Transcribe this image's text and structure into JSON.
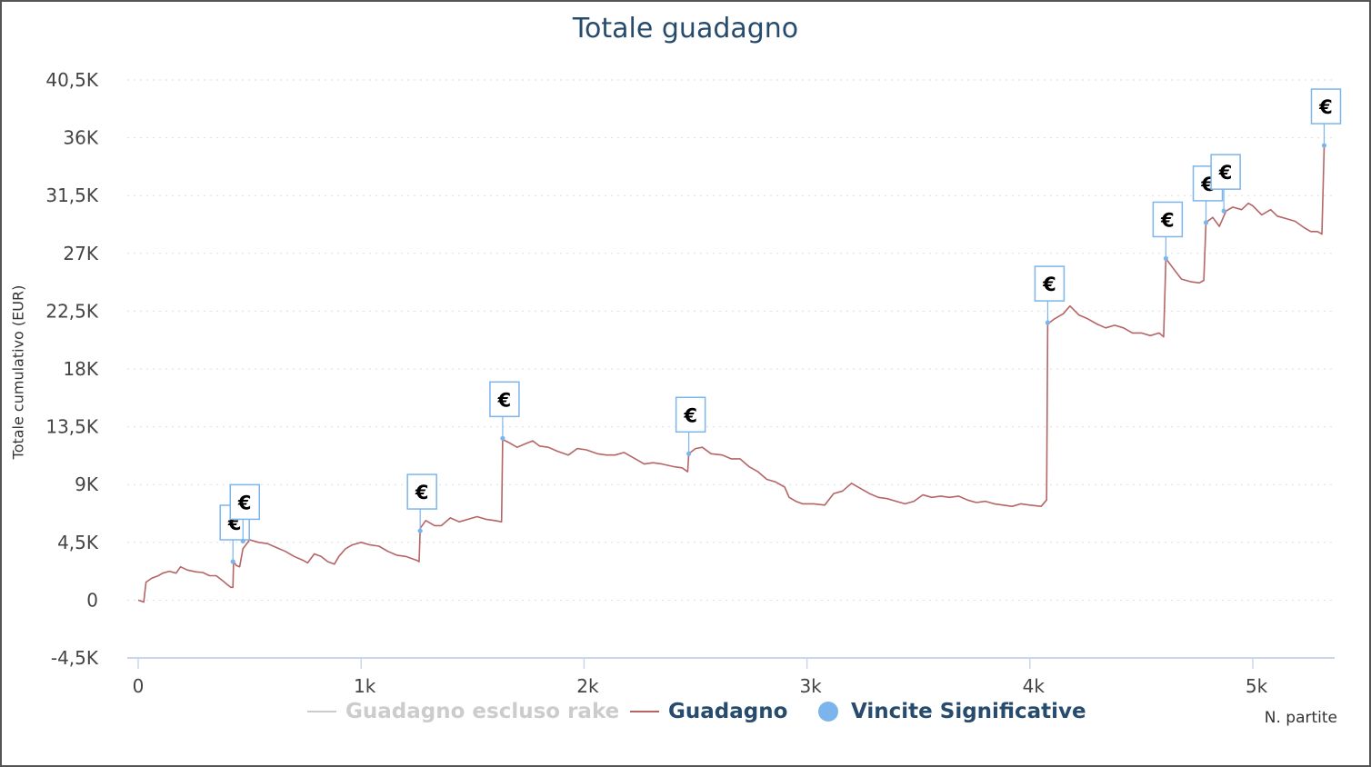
{
  "chart_data": {
    "type": "line",
    "title": "Totale guadagno",
    "xlabel": "N. partite",
    "ylabel": "Totale cumulativo (EUR)",
    "xlim": [
      0,
      5350
    ],
    "ylim": [
      -4500,
      40500
    ],
    "y_ticks": [
      "40,5K",
      "36K",
      "31,5K",
      "27K",
      "22,5K",
      "18K",
      "13,5K",
      "9K",
      "4,5K",
      "0",
      "-4,5K"
    ],
    "y_tick_values": [
      40500,
      36000,
      31500,
      27000,
      22500,
      18000,
      13500,
      9000,
      4500,
      0,
      -4500
    ],
    "x_ticks": [
      "0",
      "1k",
      "2k",
      "3k",
      "4k",
      "5k"
    ],
    "x_tick_values": [
      0,
      1000,
      2000,
      3000,
      4000,
      5000
    ],
    "grid": true,
    "legend_position": "bottom",
    "series": [
      {
        "name": "Guadagno escluso rake",
        "color": "#cccccc",
        "visible": false
      },
      {
        "name": "Guadagno",
        "color": "#b56565",
        "points": [
          [
            0,
            0
          ],
          [
            25,
            -150
          ],
          [
            35,
            1400
          ],
          [
            60,
            1700
          ],
          [
            90,
            1900
          ],
          [
            110,
            2100
          ],
          [
            140,
            2250
          ],
          [
            170,
            2100
          ],
          [
            190,
            2600
          ],
          [
            220,
            2350
          ],
          [
            260,
            2200
          ],
          [
            290,
            2150
          ],
          [
            320,
            1900
          ],
          [
            350,
            1900
          ],
          [
            380,
            1500
          ],
          [
            400,
            1200
          ],
          [
            415,
            1000
          ],
          [
            425,
            1000
          ],
          [
            428,
            3000
          ],
          [
            440,
            2700
          ],
          [
            455,
            2600
          ],
          [
            470,
            4000
          ],
          [
            500,
            4700
          ],
          [
            540,
            4500
          ],
          [
            580,
            4400
          ],
          [
            620,
            4100
          ],
          [
            660,
            3800
          ],
          [
            700,
            3400
          ],
          [
            740,
            3100
          ],
          [
            760,
            2900
          ],
          [
            790,
            3600
          ],
          [
            820,
            3400
          ],
          [
            850,
            3000
          ],
          [
            880,
            2800
          ],
          [
            900,
            3400
          ],
          [
            930,
            4000
          ],
          [
            960,
            4300
          ],
          [
            1000,
            4500
          ],
          [
            1040,
            4300
          ],
          [
            1080,
            4200
          ],
          [
            1120,
            3800
          ],
          [
            1160,
            3500
          ],
          [
            1200,
            3400
          ],
          [
            1250,
            3100
          ],
          [
            1260,
            3000
          ],
          [
            1265,
            5600
          ],
          [
            1290,
            6200
          ],
          [
            1330,
            5800
          ],
          [
            1360,
            5800
          ],
          [
            1400,
            6400
          ],
          [
            1440,
            6100
          ],
          [
            1480,
            6300
          ],
          [
            1520,
            6500
          ],
          [
            1560,
            6300
          ],
          [
            1600,
            6200
          ],
          [
            1630,
            6100
          ],
          [
            1635,
            12500
          ],
          [
            1660,
            12300
          ],
          [
            1700,
            11900
          ],
          [
            1740,
            12200
          ],
          [
            1770,
            12400
          ],
          [
            1800,
            12000
          ],
          [
            1840,
            11900
          ],
          [
            1880,
            11600
          ],
          [
            1930,
            11300
          ],
          [
            1970,
            11800
          ],
          [
            2010,
            11700
          ],
          [
            2060,
            11400
          ],
          [
            2100,
            11300
          ],
          [
            2140,
            11300
          ],
          [
            2180,
            11500
          ],
          [
            2230,
            11000
          ],
          [
            2270,
            10600
          ],
          [
            2310,
            10700
          ],
          [
            2350,
            10600
          ],
          [
            2400,
            10400
          ],
          [
            2440,
            10300
          ],
          [
            2465,
            10000
          ],
          [
            2470,
            11400
          ],
          [
            2500,
            11800
          ],
          [
            2530,
            11900
          ],
          [
            2570,
            11400
          ],
          [
            2620,
            11300
          ],
          [
            2660,
            11000
          ],
          [
            2700,
            11000
          ],
          [
            2740,
            10400
          ],
          [
            2780,
            10000
          ],
          [
            2820,
            9400
          ],
          [
            2860,
            9200
          ],
          [
            2900,
            8800
          ],
          [
            2920,
            8000
          ],
          [
            2950,
            7700
          ],
          [
            2980,
            7500
          ],
          [
            3030,
            7500
          ],
          [
            3080,
            7400
          ],
          [
            3120,
            8300
          ],
          [
            3160,
            8500
          ],
          [
            3200,
            9100
          ],
          [
            3240,
            8700
          ],
          [
            3280,
            8300
          ],
          [
            3320,
            8000
          ],
          [
            3360,
            7900
          ],
          [
            3400,
            7700
          ],
          [
            3440,
            7500
          ],
          [
            3480,
            7700
          ],
          [
            3520,
            8200
          ],
          [
            3560,
            8000
          ],
          [
            3600,
            8100
          ],
          [
            3640,
            8000
          ],
          [
            3680,
            8100
          ],
          [
            3720,
            7800
          ],
          [
            3760,
            7600
          ],
          [
            3800,
            7700
          ],
          [
            3840,
            7500
          ],
          [
            3880,
            7400
          ],
          [
            3920,
            7300
          ],
          [
            3960,
            7500
          ],
          [
            4000,
            7400
          ],
          [
            4050,
            7300
          ],
          [
            4075,
            7800
          ],
          [
            4080,
            21500
          ],
          [
            4110,
            21900
          ],
          [
            4150,
            22300
          ],
          [
            4180,
            22900
          ],
          [
            4220,
            22200
          ],
          [
            4260,
            21900
          ],
          [
            4300,
            21500
          ],
          [
            4340,
            21200
          ],
          [
            4380,
            21400
          ],
          [
            4420,
            21200
          ],
          [
            4460,
            20800
          ],
          [
            4500,
            20800
          ],
          [
            4540,
            20600
          ],
          [
            4580,
            20800
          ],
          [
            4600,
            20500
          ],
          [
            4610,
            26600
          ],
          [
            4640,
            25900
          ],
          [
            4680,
            25000
          ],
          [
            4720,
            24800
          ],
          [
            4760,
            24700
          ],
          [
            4780,
            24900
          ],
          [
            4790,
            29400
          ],
          [
            4820,
            29800
          ],
          [
            4850,
            29100
          ],
          [
            4880,
            30300
          ],
          [
            4910,
            30600
          ],
          [
            4950,
            30400
          ],
          [
            4980,
            30900
          ],
          [
            5000,
            30700
          ],
          [
            5040,
            30000
          ],
          [
            5080,
            30400
          ],
          [
            5110,
            29900
          ],
          [
            5150,
            29700
          ],
          [
            5190,
            29500
          ],
          [
            5230,
            29000
          ],
          [
            5260,
            28700
          ],
          [
            5290,
            28700
          ],
          [
            5310,
            28500
          ],
          [
            5320,
            35300
          ]
        ]
      },
      {
        "name": "Vincite Significative",
        "color": "#7cb5ec",
        "points": [
          [
            425,
            3000
          ],
          [
            470,
            4600
          ],
          [
            1265,
            5400
          ],
          [
            1635,
            12600
          ],
          [
            2470,
            11400
          ],
          [
            4080,
            21600
          ],
          [
            4610,
            26600
          ],
          [
            4790,
            29400
          ],
          [
            4870,
            30300
          ],
          [
            5320,
            35400
          ]
        ],
        "marker_label": "€"
      }
    ]
  }
}
